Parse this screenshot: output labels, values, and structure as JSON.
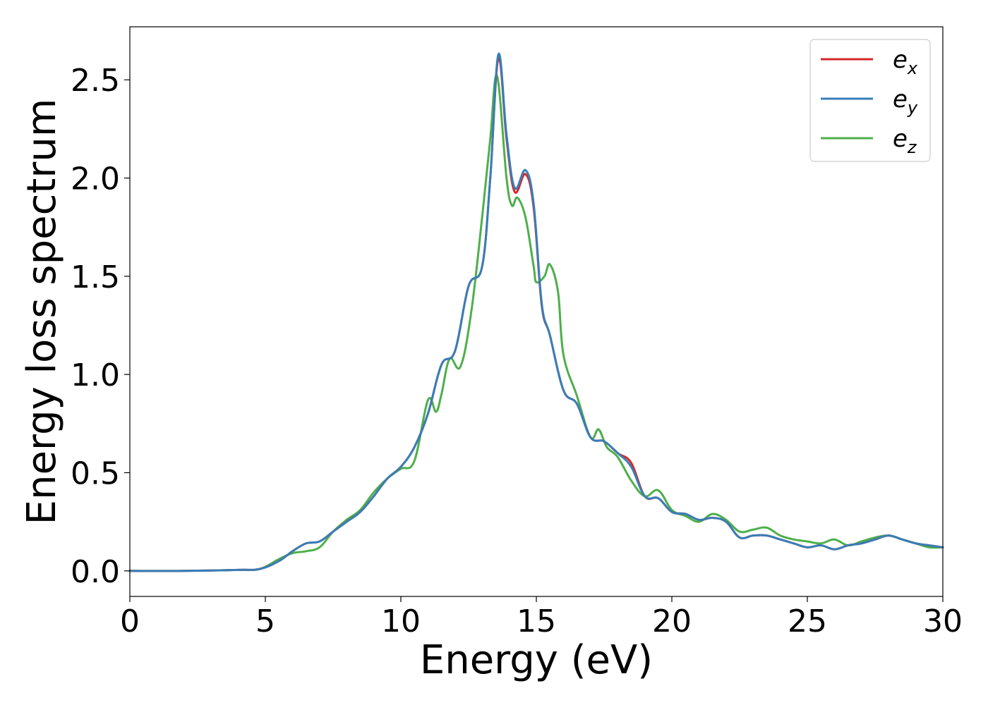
{
  "chart_data": {
    "type": "line",
    "xlabel": "Energy (eV)",
    "ylabel": "Energy loss spectrum",
    "xlim": [
      0,
      30
    ],
    "ylim": [
      -0.13,
      2.77
    ],
    "xticks": [
      0,
      5,
      10,
      15,
      20,
      25,
      30
    ],
    "xtick_labels": [
      "0",
      "5",
      "10",
      "15",
      "20",
      "25",
      "30"
    ],
    "yticks": [
      0.0,
      0.5,
      1.0,
      1.5,
      2.0,
      2.5
    ],
    "ytick_labels": [
      "0.0",
      "0.5",
      "1.0",
      "1.5",
      "2.0",
      "2.5"
    ],
    "grid": false,
    "legend_position": "top-right",
    "series": [
      {
        "name": "e",
        "subscript": "x",
        "color": "#d62728",
        "x": [
          0,
          2,
          4,
          4.8,
          5.5,
          6,
          6.5,
          7,
          7.5,
          8,
          8.5,
          9,
          9.5,
          10,
          10.5,
          11,
          11.5,
          12,
          12.5,
          13,
          13.3,
          13.6,
          13.9,
          14.2,
          14.6,
          14.9,
          15.2,
          15.5,
          16,
          16.5,
          17,
          17.5,
          18,
          18.5,
          19,
          19.5,
          20,
          20.5,
          21,
          21.5,
          22,
          22.5,
          23,
          23.5,
          24,
          24.5,
          25,
          25.5,
          26,
          26.5,
          27,
          27.5,
          28,
          28.5,
          29,
          29.5,
          30
        ],
        "y": [
          0.0,
          0.0,
          0.005,
          0.01,
          0.05,
          0.1,
          0.14,
          0.15,
          0.2,
          0.25,
          0.3,
          0.38,
          0.47,
          0.53,
          0.63,
          0.8,
          1.05,
          1.12,
          1.45,
          1.55,
          2.0,
          2.61,
          2.2,
          1.93,
          2.02,
          1.85,
          1.35,
          1.2,
          0.92,
          0.85,
          0.68,
          0.66,
          0.6,
          0.55,
          0.38,
          0.37,
          0.3,
          0.29,
          0.26,
          0.27,
          0.25,
          0.17,
          0.18,
          0.18,
          0.16,
          0.14,
          0.12,
          0.13,
          0.11,
          0.13,
          0.14,
          0.16,
          0.18,
          0.16,
          0.14,
          0.13,
          0.12
        ]
      },
      {
        "name": "e",
        "subscript": "y",
        "color": "#377eb8",
        "x": [
          0,
          2,
          4,
          4.8,
          5.5,
          6,
          6.5,
          7,
          7.5,
          8,
          8.5,
          9,
          9.5,
          10,
          10.5,
          11,
          11.5,
          12,
          12.5,
          13,
          13.3,
          13.6,
          13.9,
          14.2,
          14.6,
          14.9,
          15.2,
          15.5,
          16,
          16.5,
          17,
          17.5,
          18,
          18.5,
          19,
          19.5,
          20,
          20.5,
          21,
          21.5,
          22,
          22.5,
          23,
          23.5,
          24,
          24.5,
          25,
          25.5,
          26,
          26.5,
          27,
          27.5,
          28,
          28.5,
          29,
          29.5,
          30
        ],
        "y": [
          0.0,
          0.0,
          0.005,
          0.01,
          0.05,
          0.1,
          0.14,
          0.15,
          0.2,
          0.25,
          0.3,
          0.38,
          0.47,
          0.53,
          0.63,
          0.8,
          1.05,
          1.12,
          1.45,
          1.55,
          2.0,
          2.63,
          2.22,
          1.95,
          2.04,
          1.87,
          1.36,
          1.2,
          0.92,
          0.85,
          0.68,
          0.66,
          0.6,
          0.53,
          0.38,
          0.37,
          0.3,
          0.29,
          0.26,
          0.27,
          0.25,
          0.17,
          0.18,
          0.18,
          0.16,
          0.14,
          0.12,
          0.13,
          0.11,
          0.13,
          0.14,
          0.16,
          0.18,
          0.16,
          0.14,
          0.13,
          0.12
        ]
      },
      {
        "name": "e",
        "subscript": "z",
        "color": "#4daf4a",
        "x": [
          0,
          2,
          4,
          4.8,
          5.5,
          6,
          6.5,
          7,
          7.5,
          8,
          8.5,
          9,
          9.5,
          10,
          10.5,
          11,
          11.3,
          11.5,
          11.8,
          12.2,
          12.6,
          13,
          13.3,
          13.55,
          13.9,
          14.1,
          14.3,
          14.6,
          14.9,
          15.0,
          15.3,
          15.5,
          15.8,
          16,
          16.5,
          17,
          17.3,
          17.6,
          18,
          18.5,
          19,
          19.5,
          20,
          20.5,
          21,
          21.5,
          22,
          22.5,
          23,
          23.5,
          24,
          24.5,
          25,
          25.5,
          26,
          26.5,
          27,
          27.5,
          28,
          28.5,
          29,
          29.5,
          30
        ],
        "y": [
          0.0,
          0.0,
          0.005,
          0.01,
          0.06,
          0.09,
          0.1,
          0.12,
          0.2,
          0.26,
          0.31,
          0.4,
          0.47,
          0.52,
          0.56,
          0.87,
          0.81,
          0.9,
          1.08,
          1.04,
          1.32,
          1.8,
          2.2,
          2.52,
          2.0,
          1.86,
          1.9,
          1.8,
          1.55,
          1.47,
          1.5,
          1.56,
          1.42,
          1.1,
          0.89,
          0.68,
          0.72,
          0.63,
          0.58,
          0.46,
          0.38,
          0.41,
          0.31,
          0.28,
          0.25,
          0.29,
          0.26,
          0.2,
          0.21,
          0.22,
          0.18,
          0.16,
          0.15,
          0.14,
          0.16,
          0.13,
          0.15,
          0.17,
          0.18,
          0.16,
          0.14,
          0.12,
          0.12
        ]
      }
    ]
  }
}
